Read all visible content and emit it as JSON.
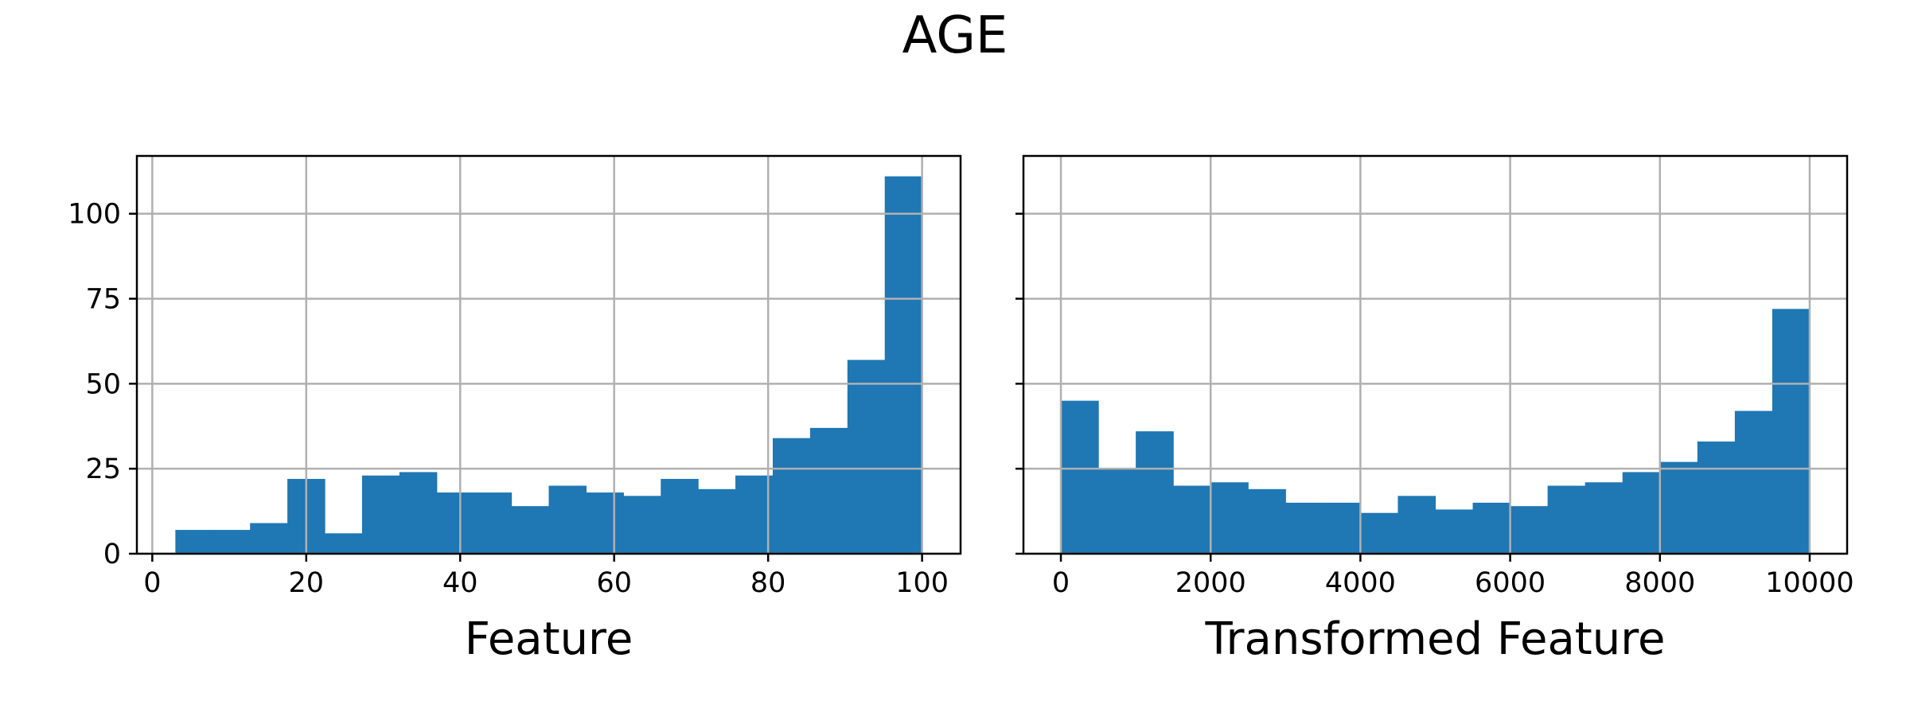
{
  "figure": {
    "title": "AGE"
  },
  "colors": {
    "bar": "#1f77b4",
    "grid": "#b0b0b0",
    "axis": "#000000"
  },
  "chart_data": [
    {
      "type": "bar",
      "xlabel": "Feature",
      "ylabel": "",
      "xlim": [
        -2,
        105
      ],
      "ylim": [
        0,
        117
      ],
      "xticks": [
        0,
        20,
        40,
        60,
        80,
        100
      ],
      "yticks": [
        0,
        25,
        50,
        75,
        100
      ],
      "grid": true,
      "bin_edges": [
        3.0,
        7.85,
        12.7,
        17.55,
        22.4,
        27.25,
        32.1,
        36.95,
        41.8,
        46.65,
        51.5,
        56.35,
        61.2,
        66.05,
        70.9,
        75.75,
        80.6,
        85.45,
        90.3,
        95.15,
        100.0
      ],
      "values": [
        7,
        7,
        9,
        22,
        6,
        23,
        24,
        18,
        18,
        14,
        20,
        18,
        17,
        22,
        19,
        23,
        34,
        37,
        57,
        111
      ]
    },
    {
      "type": "bar",
      "xlabel": "Transformed Feature",
      "ylabel": "",
      "xlim": [
        -500,
        10500
      ],
      "ylim": [
        0,
        117
      ],
      "xticks": [
        0,
        2000,
        4000,
        6000,
        8000,
        10000
      ],
      "yticks": [
        0,
        25,
        50,
        75,
        100
      ],
      "grid": true,
      "shared_y": true,
      "bin_edges": [
        0,
        500,
        1000,
        1500,
        2000,
        2500,
        3000,
        3500,
        4000,
        4500,
        5000,
        5500,
        6000,
        6500,
        7000,
        7500,
        8000,
        8500,
        9000,
        9500,
        10000
      ],
      "values": [
        45,
        25,
        36,
        20,
        21,
        19,
        15,
        15,
        12,
        17,
        13,
        15,
        14,
        20,
        21,
        24,
        27,
        33,
        42,
        72
      ]
    }
  ]
}
